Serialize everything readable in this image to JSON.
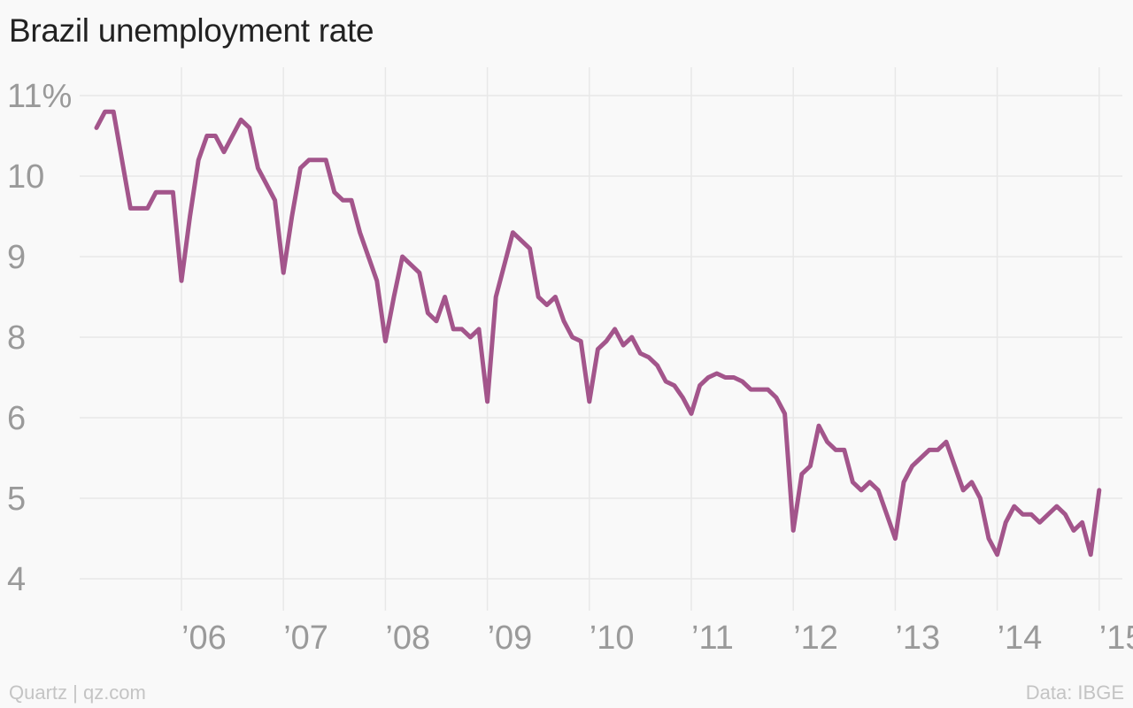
{
  "title": "Brazil unemployment rate",
  "footer": {
    "credit": "Quartz | qz.com",
    "source": "Data: IBGE"
  },
  "colors": {
    "line": "#a3558b",
    "grid": "#e8e8e8",
    "tick_text": "#9a9a9a"
  },
  "chart_data": {
    "type": "line",
    "title": "Brazil unemployment rate",
    "xlabel": "",
    "ylabel": "",
    "x_ticks": [
      {
        "year": 2006,
        "label": "’06"
      },
      {
        "year": 2007,
        "label": "’07"
      },
      {
        "year": 2008,
        "label": "’08"
      },
      {
        "year": 2009,
        "label": "’09"
      },
      {
        "year": 2010,
        "label": "’10"
      },
      {
        "year": 2011,
        "label": "’11"
      },
      {
        "year": 2012,
        "label": "’12"
      },
      {
        "year": 2013,
        "label": "’13"
      },
      {
        "year": 2014,
        "label": "’14"
      },
      {
        "year": 2015,
        "label": "’15"
      }
    ],
    "y_ticks": [
      {
        "value": 11,
        "label": "11%"
      },
      {
        "value": 10,
        "label": "10"
      },
      {
        "value": 9,
        "label": "9"
      },
      {
        "value": 8,
        "label": "8"
      },
      {
        "value": 6,
        "label": "6"
      },
      {
        "value": 5,
        "label": "5"
      },
      {
        "value": 4,
        "label": "4"
      }
    ],
    "grid": true,
    "series": [
      {
        "start_year": 2005,
        "start_month": 3,
        "values": [
          10.6,
          10.8,
          10.8,
          10.2,
          9.6,
          9.6,
          9.6,
          9.8,
          9.8,
          9.8,
          8.7,
          9.5,
          10.2,
          10.5,
          10.5,
          10.3,
          10.5,
          10.7,
          10.6,
          10.1,
          9.9,
          9.7,
          8.8,
          9.5,
          10.1,
          10.2,
          10.2,
          10.2,
          9.8,
          9.7,
          9.7,
          9.3,
          9.0,
          8.7,
          7.9,
          8.5,
          9.0,
          8.9,
          8.8,
          8.3,
          8.2,
          8.5,
          8.1,
          8.1,
          8.0,
          8.1,
          6.4,
          8.5,
          8.9,
          9.3,
          9.2,
          9.1,
          8.5,
          8.4,
          8.5,
          8.2,
          8.0,
          7.9,
          6.4,
          7.7,
          7.9,
          8.1,
          7.8,
          8.0,
          7.6,
          7.5,
          7.3,
          6.9,
          6.8,
          6.5,
          6.1,
          6.8,
          7.0,
          7.1,
          7.0,
          7.0,
          6.9,
          6.7,
          6.7,
          6.7,
          6.5,
          6.1,
          4.6,
          5.3,
          5.4,
          5.9,
          5.7,
          5.6,
          5.6,
          5.2,
          5.1,
          5.2,
          5.1,
          4.8,
          4.5,
          5.2,
          5.4,
          5.5,
          5.6,
          5.6,
          5.7,
          5.4,
          5.1,
          5.2,
          5.0,
          4.5,
          4.3,
          4.7,
          4.9,
          4.8,
          4.8,
          4.7,
          4.8,
          4.9,
          4.8,
          4.6,
          4.7,
          4.3,
          5.1
        ]
      }
    ]
  }
}
